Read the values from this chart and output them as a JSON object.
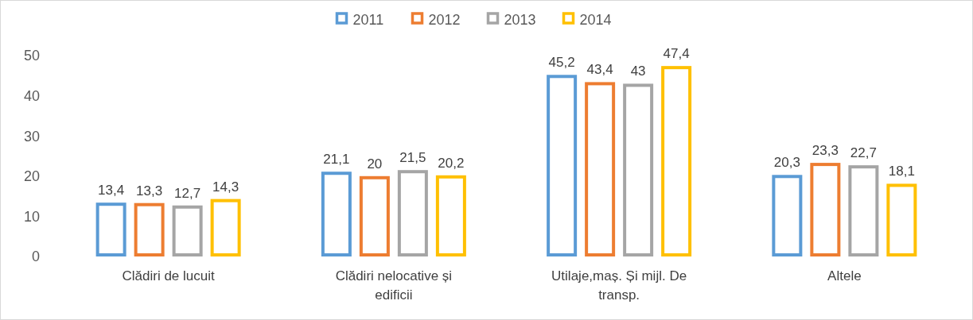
{
  "chart_data": {
    "type": "bar",
    "categories": [
      "Clădiri de lucuit",
      "Clădiri nelocative și edificii",
      "Utilaje,maș. Și mijl. De transp.",
      "Altele"
    ],
    "series": [
      {
        "name": "2011",
        "color": "#5b9bd5",
        "values": [
          13.4,
          21.1,
          45.2,
          20.3
        ],
        "value_labels": [
          "13,4",
          "21,1",
          "45,2",
          "20,3"
        ]
      },
      {
        "name": "2012",
        "color": "#ed7d31",
        "values": [
          13.3,
          20,
          43.4,
          23.3
        ],
        "value_labels": [
          "13,3",
          "20",
          "43,4",
          "23,3"
        ]
      },
      {
        "name": "2013",
        "color": "#a5a5a5",
        "values": [
          12.7,
          21.5,
          43,
          22.7
        ],
        "value_labels": [
          "12,7",
          "21,5",
          "43",
          "22,7"
        ]
      },
      {
        "name": "2014",
        "color": "#ffc000",
        "values": [
          14.3,
          20.2,
          47.4,
          18.1
        ],
        "value_labels": [
          "14,3",
          "20,2",
          "47,4",
          "18,1"
        ]
      }
    ],
    "ylim": [
      0,
      50
    ],
    "yticks": [
      0,
      10,
      20,
      30,
      40,
      50
    ],
    "grid": false,
    "legend": "top"
  }
}
